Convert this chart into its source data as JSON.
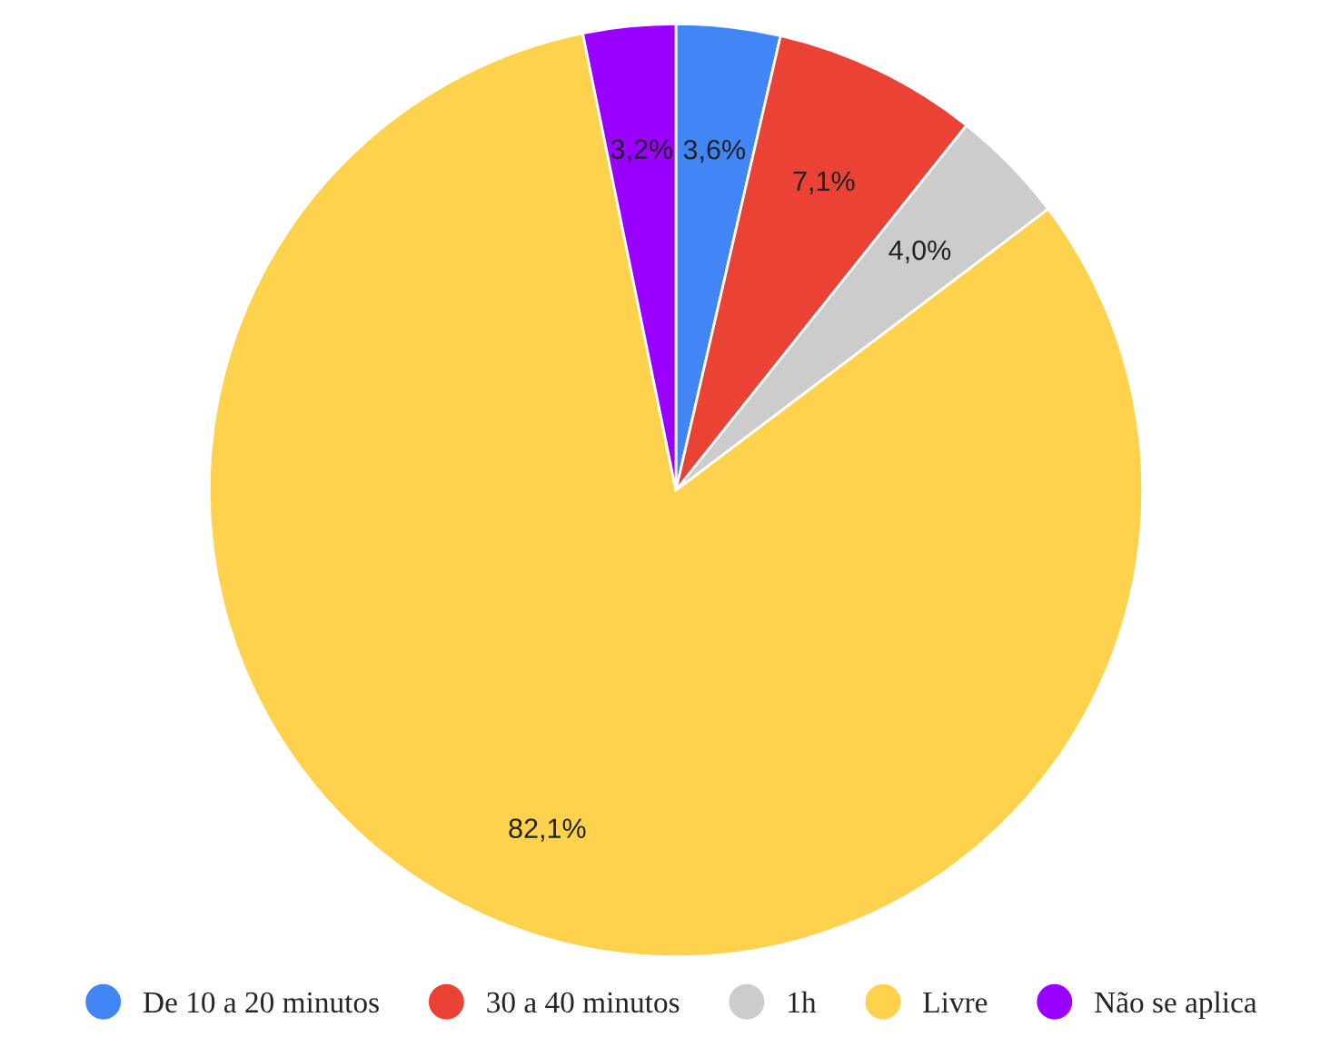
{
  "chart_data": {
    "type": "pie",
    "categories": [
      "De 10 a 20 minutos",
      "30 a 40 minutos",
      "1h",
      "Livre",
      "Não se aplica"
    ],
    "values": [
      3.6,
      7.1,
      4.0,
      82.1,
      3.2
    ],
    "colors": [
      "#4285f4",
      "#ea4335",
      "#cccccc",
      "#ffd24d",
      "#9900ff"
    ],
    "value_labels": [
      "3,6%",
      "7,1%",
      "4,0%",
      "82,1%",
      "3,2%"
    ],
    "legend": "bottom"
  }
}
